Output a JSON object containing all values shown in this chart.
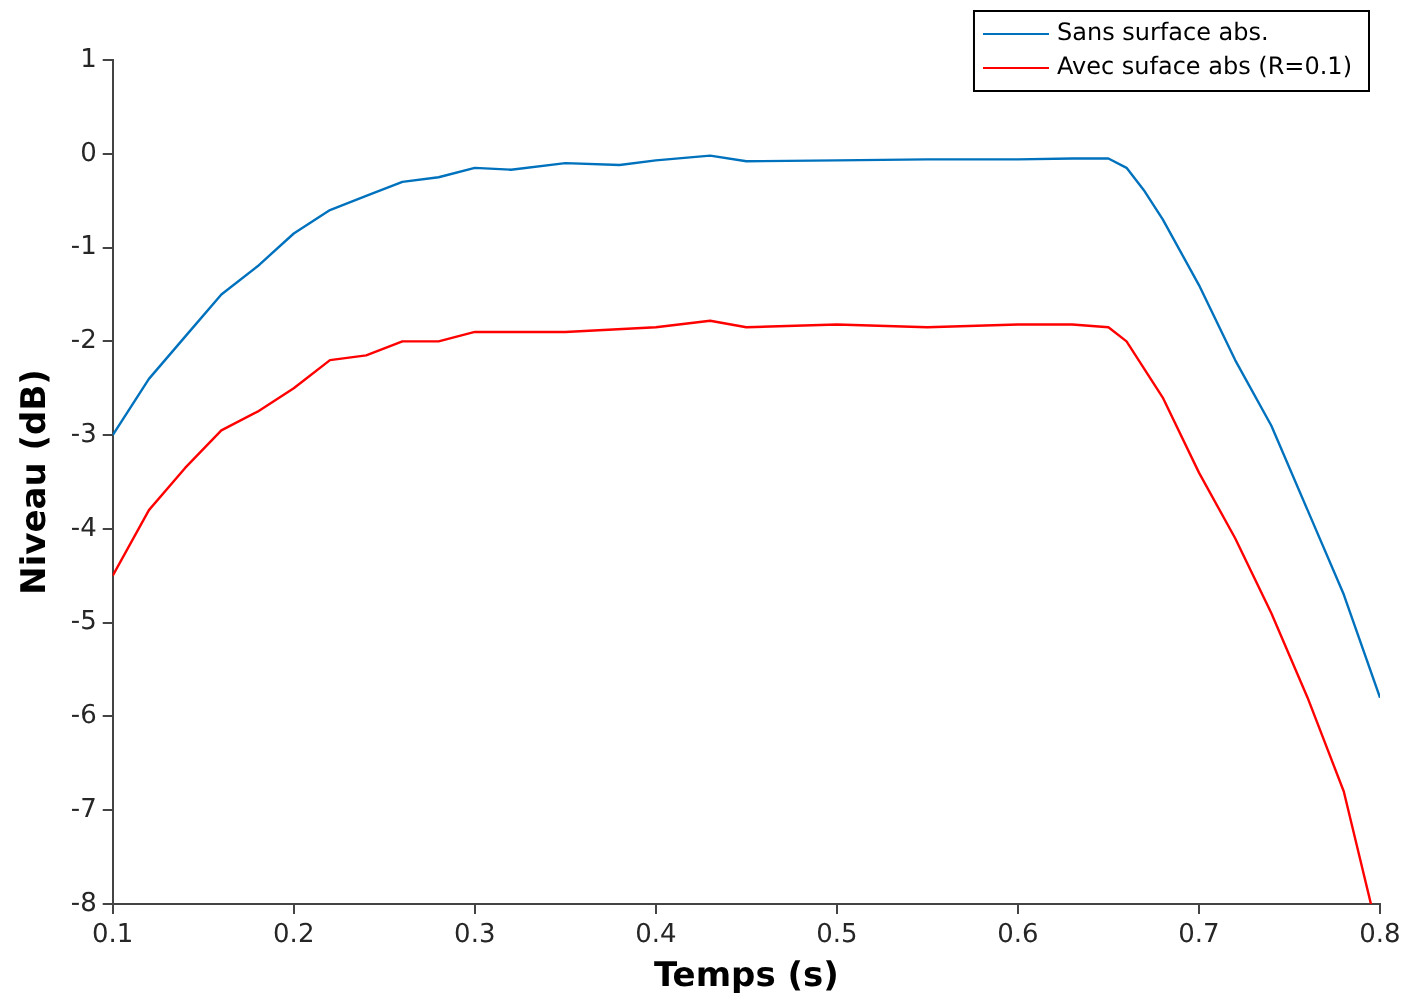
{
  "chart_data": {
    "type": "line",
    "xlabel": "Temps (s)",
    "ylabel": "Niveau (dB)",
    "xlim": [
      0.1,
      0.8
    ],
    "ylim": [
      -8,
      1
    ],
    "xticks": [
      0.1,
      0.2,
      0.3,
      0.4,
      0.5,
      0.6,
      0.7,
      0.8
    ],
    "yticks": [
      -8,
      -7,
      -6,
      -5,
      -4,
      -3,
      -2,
      -1,
      0,
      1
    ],
    "grid": false,
    "legend": "top right",
    "marker": "none",
    "line_style": "solid",
    "series": [
      {
        "name": "Sans surface abs.",
        "color": "#0072bd",
        "x": [
          0.1,
          0.12,
          0.14,
          0.16,
          0.18,
          0.2,
          0.22,
          0.24,
          0.26,
          0.28,
          0.3,
          0.32,
          0.35,
          0.38,
          0.4,
          0.43,
          0.45,
          0.5,
          0.55,
          0.6,
          0.63,
          0.65,
          0.66,
          0.67,
          0.68,
          0.7,
          0.72,
          0.74,
          0.76,
          0.78,
          0.8
        ],
        "values": [
          -3.0,
          -2.4,
          -1.95,
          -1.5,
          -1.2,
          -0.85,
          -0.6,
          -0.45,
          -0.3,
          -0.25,
          -0.15,
          -0.17,
          -0.1,
          -0.12,
          -0.07,
          -0.02,
          -0.08,
          -0.07,
          -0.06,
          -0.06,
          -0.05,
          -0.05,
          -0.15,
          -0.4,
          -0.7,
          -1.4,
          -2.2,
          -2.9,
          -3.8,
          -4.7,
          -5.8
        ]
      },
      {
        "name": "Avec suface abs (R=0.1)",
        "color": "#ff0000",
        "x": [
          0.1,
          0.12,
          0.14,
          0.16,
          0.18,
          0.2,
          0.22,
          0.24,
          0.26,
          0.28,
          0.3,
          0.35,
          0.4,
          0.43,
          0.45,
          0.5,
          0.55,
          0.6,
          0.63,
          0.65,
          0.66,
          0.68,
          0.7,
          0.72,
          0.74,
          0.76,
          0.78,
          0.795
        ],
        "values": [
          -4.5,
          -3.8,
          -3.35,
          -2.95,
          -2.75,
          -2.5,
          -2.2,
          -2.15,
          -2.0,
          -2.0,
          -1.9,
          -1.9,
          -1.85,
          -1.78,
          -1.85,
          -1.82,
          -1.85,
          -1.82,
          -1.82,
          -1.85,
          -2.0,
          -2.6,
          -3.4,
          -4.1,
          -4.9,
          -5.8,
          -6.8,
          -8.0
        ]
      }
    ]
  }
}
